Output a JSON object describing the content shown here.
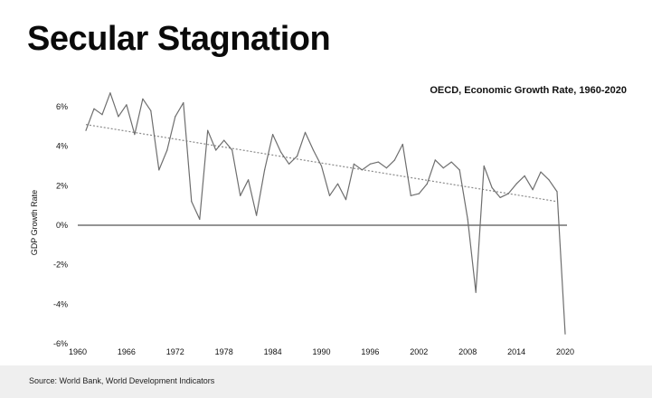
{
  "slide": {
    "title": "Secular Stagnation",
    "source": "Source: World Bank, World Development Indicators"
  },
  "colors": {
    "line": "#6e6e6e",
    "trend": "#8a8a8a",
    "zero_line": "#2a2a2a",
    "text": "#111111",
    "footer_bg": "#efefef"
  },
  "chart_data": {
    "type": "line",
    "title": "OECD, Economic Growth Rate, 1960-2020",
    "xlabel": "",
    "ylabel": "GDP Growth Rate",
    "xlim": [
      1960,
      2020
    ],
    "ylim": [
      -6,
      7
    ],
    "x_ticks": [
      1960,
      1966,
      1972,
      1978,
      1984,
      1990,
      1996,
      2002,
      2008,
      2014,
      2020
    ],
    "y_ticks": [
      -6,
      -4,
      -2,
      0,
      2,
      4,
      6
    ],
    "y_tick_labels": [
      "-6%",
      "-4%",
      "-2%",
      "0%",
      "2%",
      "4%",
      "6%"
    ],
    "grid": false,
    "zero_line": true,
    "series": [
      {
        "name": "",
        "x": [
          1961,
          1962,
          1963,
          1964,
          1965,
          1966,
          1967,
          1968,
          1969,
          1970,
          1971,
          1972,
          1973,
          1974,
          1975,
          1976,
          1977,
          1978,
          1979,
          1980,
          1981,
          1982,
          1983,
          1984,
          1985,
          1986,
          1987,
          1988,
          1989,
          1990,
          1991,
          1992,
          1993,
          1994,
          1995,
          1996,
          1997,
          1998,
          1999,
          2000,
          2001,
          2002,
          2003,
          2004,
          2005,
          2006,
          2007,
          2008,
          2009,
          2010,
          2011,
          2012,
          2013,
          2014,
          2015,
          2016,
          2017,
          2018,
          2019,
          2020
        ],
        "values": [
          4.8,
          5.9,
          5.6,
          6.7,
          5.5,
          6.1,
          4.6,
          6.4,
          5.8,
          2.8,
          3.8,
          5.5,
          6.2,
          1.2,
          0.3,
          4.8,
          3.8,
          4.3,
          3.8,
          1.5,
          2.3,
          0.5,
          2.8,
          4.6,
          3.7,
          3.1,
          3.5,
          4.7,
          3.8,
          3.0,
          1.5,
          2.1,
          1.3,
          3.1,
          2.8,
          3.1,
          3.2,
          2.9,
          3.3,
          4.1,
          1.5,
          1.6,
          2.1,
          3.3,
          2.9,
          3.2,
          2.8,
          0.3,
          -3.4,
          3.0,
          1.9,
          1.4,
          1.6,
          2.1,
          2.5,
          1.8,
          2.7,
          2.3,
          1.7,
          -5.5
        ]
      }
    ],
    "trendline": {
      "x": [
        1961,
        2019
      ],
      "values": [
        5.1,
        1.2
      ]
    }
  }
}
